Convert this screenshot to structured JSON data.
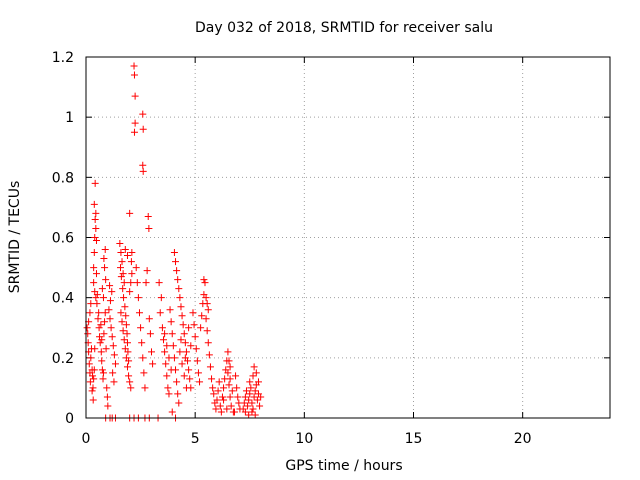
{
  "chart_data": {
    "type": "scatter",
    "title": "Day 032 of 2018, SRMTID for receiver salu",
    "xlabel": "GPS time / hours",
    "ylabel": "SRMTID / TECUs",
    "xlim": [
      0,
      24
    ],
    "ylim": [
      0,
      1.2
    ],
    "xticks": [
      0,
      5,
      10,
      15,
      20
    ],
    "xtick_labels": [
      "0",
      "5",
      "10",
      "15",
      "20"
    ],
    "yticks": [
      0,
      0.2,
      0.4,
      0.6,
      0.8,
      1.0,
      1.2
    ],
    "ytick_labels": [
      "0",
      "0.2",
      "0.4",
      "0.6",
      "0.8",
      "1",
      "1.2"
    ],
    "grid": true,
    "marker": "+",
    "color": "#ff0000",
    "series": [
      {
        "name": "SRMTID",
        "points": [
          [
            0.05,
            0.3
          ],
          [
            0.08,
            0.28
          ],
          [
            0.1,
            0.25
          ],
          [
            0.12,
            0.22
          ],
          [
            0.15,
            0.18
          ],
          [
            0.18,
            0.15
          ],
          [
            0.2,
            0.12
          ],
          [
            0.22,
            0.2
          ],
          [
            0.25,
            0.23
          ],
          [
            0.28,
            0.16
          ],
          [
            0.3,
            0.14
          ],
          [
            0.32,
            0.1
          ],
          [
            0.35,
            0.13
          ],
          [
            0.38,
            0.16
          ],
          [
            0.4,
            0.23
          ],
          [
            0.12,
            0.32
          ],
          [
            0.18,
            0.35
          ],
          [
            0.22,
            0.38
          ],
          [
            0.28,
            0.09
          ],
          [
            0.33,
            0.06
          ],
          [
            0.35,
            0.5
          ],
          [
            0.38,
            0.55
          ],
          [
            0.4,
            0.6
          ],
          [
            0.42,
            0.66
          ],
          [
            0.45,
            0.68
          ],
          [
            0.38,
            0.71
          ],
          [
            0.42,
            0.78
          ],
          [
            0.45,
            0.63
          ],
          [
            0.48,
            0.59
          ],
          [
            0.35,
            0.45
          ],
          [
            0.4,
            0.42
          ],
          [
            0.45,
            0.4
          ],
          [
            0.5,
            0.38
          ],
          [
            0.55,
            0.33
          ],
          [
            0.6,
            0.3
          ],
          [
            0.62,
            0.27
          ],
          [
            0.65,
            0.25
          ],
          [
            0.58,
            0.35
          ],
          [
            0.52,
            0.41
          ],
          [
            0.48,
            0.48
          ],
          [
            0.7,
            0.22
          ],
          [
            0.72,
            0.19
          ],
          [
            0.75,
            0.16
          ],
          [
            0.78,
            0.13
          ],
          [
            0.8,
            0.15
          ],
          [
            0.82,
            0.28
          ],
          [
            0.85,
            0.32
          ],
          [
            0.88,
            0.35
          ],
          [
            0.8,
            0.4
          ],
          [
            0.75,
            0.43
          ],
          [
            0.9,
            0.46
          ],
          [
            0.85,
            0.5
          ],
          [
            0.82,
            0.53
          ],
          [
            0.88,
            0.56
          ],
          [
            0.72,
            0.26
          ],
          [
            0.68,
            0.31
          ],
          [
            0.92,
            0.23
          ],
          [
            0.95,
            0.1
          ],
          [
            0.98,
            0.07
          ],
          [
            1.0,
            0.04
          ],
          [
            1.05,
            0.36
          ],
          [
            1.1,
            0.33
          ],
          [
            1.15,
            0.3
          ],
          [
            1.2,
            0.27
          ],
          [
            1.25,
            0.24
          ],
          [
            1.3,
            0.21
          ],
          [
            1.35,
            0.18
          ],
          [
            1.12,
            0.39
          ],
          [
            1.18,
            0.42
          ],
          [
            1.08,
            0.44
          ],
          [
            1.22,
            0.15
          ],
          [
            1.28,
            0.12
          ],
          [
            0.9,
            0.0
          ],
          [
            1.1,
            0.0
          ],
          [
            1.2,
            0.0
          ],
          [
            1.35,
            0.0
          ],
          [
            1.55,
            0.58
          ],
          [
            1.6,
            0.55
          ],
          [
            1.65,
            0.52
          ],
          [
            1.7,
            0.48
          ],
          [
            1.75,
            0.45
          ],
          [
            1.58,
            0.5
          ],
          [
            1.62,
            0.47
          ],
          [
            1.68,
            0.43
          ],
          [
            1.72,
            0.4
          ],
          [
            1.78,
            0.37
          ],
          [
            1.82,
            0.34
          ],
          [
            1.85,
            0.31
          ],
          [
            1.88,
            0.28
          ],
          [
            1.9,
            0.25
          ],
          [
            1.92,
            0.22
          ],
          [
            1.95,
            0.19
          ],
          [
            1.6,
            0.35
          ],
          [
            1.65,
            0.32
          ],
          [
            1.7,
            0.29
          ],
          [
            1.75,
            0.26
          ],
          [
            1.8,
            0.23
          ],
          [
            1.85,
            0.2
          ],
          [
            1.9,
            0.17
          ],
          [
            1.95,
            0.14
          ],
          [
            2.0,
            0.12
          ],
          [
            2.05,
            0.1
          ],
          [
            2.0,
            0.42
          ],
          [
            2.05,
            0.45
          ],
          [
            2.1,
            0.48
          ],
          [
            2.08,
            0.52
          ],
          [
            2.1,
            0.55
          ],
          [
            2.0,
            0.68
          ],
          [
            1.8,
            0.56
          ],
          [
            1.9,
            0.54
          ],
          [
            2.2,
            1.17
          ],
          [
            2.22,
            1.14
          ],
          [
            2.25,
            1.07
          ],
          [
            2.25,
            0.98
          ],
          [
            2.22,
            0.95
          ],
          [
            2.3,
            0.5
          ],
          [
            2.35,
            0.45
          ],
          [
            2.4,
            0.4
          ],
          [
            2.45,
            0.35
          ],
          [
            2.5,
            0.3
          ],
          [
            2.55,
            0.25
          ],
          [
            2.6,
            0.2
          ],
          [
            2.65,
            0.15
          ],
          [
            2.7,
            0.1
          ],
          [
            2.6,
            1.01
          ],
          [
            2.62,
            0.96
          ],
          [
            2.6,
            0.84
          ],
          [
            2.62,
            0.82
          ],
          [
            2.75,
            0.45
          ],
          [
            2.8,
            0.49
          ],
          [
            2.85,
            0.67
          ],
          [
            2.88,
            0.63
          ],
          [
            2.9,
            0.33
          ],
          [
            2.95,
            0.28
          ],
          [
            3.0,
            0.22
          ],
          [
            3.05,
            0.18
          ],
          [
            2.2,
            0.0
          ],
          [
            2.4,
            0.0
          ],
          [
            2.7,
            0.0
          ],
          [
            2.9,
            0.0
          ],
          [
            3.3,
            0.0
          ],
          [
            2.0,
            0.0
          ],
          [
            3.5,
            0.3
          ],
          [
            3.55,
            0.26
          ],
          [
            3.6,
            0.22
          ],
          [
            3.65,
            0.18
          ],
          [
            3.7,
            0.14
          ],
          [
            3.75,
            0.1
          ],
          [
            3.8,
            0.08
          ],
          [
            3.4,
            0.35
          ],
          [
            3.45,
            0.4
          ],
          [
            3.35,
            0.45
          ],
          [
            3.6,
            0.28
          ],
          [
            3.7,
            0.24
          ],
          [
            3.8,
            0.2
          ],
          [
            3.9,
            0.16
          ],
          [
            3.85,
            0.36
          ],
          [
            3.9,
            0.32
          ],
          [
            3.95,
            0.28
          ],
          [
            4.0,
            0.24
          ],
          [
            4.05,
            0.2
          ],
          [
            4.1,
            0.16
          ],
          [
            4.15,
            0.12
          ],
          [
            4.2,
            0.08
          ],
          [
            4.25,
            0.05
          ],
          [
            3.95,
            0.02
          ],
          [
            4.1,
            0.0
          ],
          [
            4.05,
            0.55
          ],
          [
            4.1,
            0.52
          ],
          [
            4.15,
            0.49
          ],
          [
            4.2,
            0.46
          ],
          [
            4.25,
            0.43
          ],
          [
            4.3,
            0.4
          ],
          [
            4.35,
            0.37
          ],
          [
            4.4,
            0.34
          ],
          [
            4.45,
            0.31
          ],
          [
            4.5,
            0.28
          ],
          [
            4.55,
            0.25
          ],
          [
            4.6,
            0.22
          ],
          [
            4.65,
            0.19
          ],
          [
            4.7,
            0.16
          ],
          [
            4.75,
            0.13
          ],
          [
            4.8,
            0.1
          ],
          [
            4.3,
            0.22
          ],
          [
            4.4,
            0.18
          ],
          [
            4.5,
            0.14
          ],
          [
            4.6,
            0.1
          ],
          [
            4.35,
            0.26
          ],
          [
            4.55,
            0.2
          ],
          [
            4.7,
            0.3
          ],
          [
            4.8,
            0.24
          ],
          [
            4.9,
            0.35
          ],
          [
            4.95,
            0.31
          ],
          [
            5.0,
            0.27
          ],
          [
            5.05,
            0.23
          ],
          [
            5.1,
            0.19
          ],
          [
            5.15,
            0.15
          ],
          [
            5.2,
            0.12
          ],
          [
            5.25,
            0.3
          ],
          [
            5.3,
            0.34
          ],
          [
            5.35,
            0.38
          ],
          [
            5.4,
            0.41
          ],
          [
            5.45,
            0.45
          ],
          [
            5.4,
            0.46
          ],
          [
            5.5,
            0.33
          ],
          [
            5.55,
            0.29
          ],
          [
            5.6,
            0.25
          ],
          [
            5.65,
            0.21
          ],
          [
            5.7,
            0.17
          ],
          [
            5.75,
            0.13
          ],
          [
            5.8,
            0.1
          ],
          [
            5.5,
            0.4
          ],
          [
            5.55,
            0.38
          ],
          [
            5.6,
            0.36
          ],
          [
            5.85,
            0.08
          ],
          [
            5.9,
            0.05
          ],
          [
            5.95,
            0.03
          ],
          [
            6.0,
            0.06
          ],
          [
            6.05,
            0.09
          ],
          [
            6.1,
            0.12
          ],
          [
            6.15,
            0.04
          ],
          [
            6.2,
            0.02
          ],
          [
            6.25,
            0.07
          ],
          [
            6.3,
            0.1
          ],
          [
            6.35,
            0.13
          ],
          [
            6.4,
            0.16
          ],
          [
            6.45,
            0.19
          ],
          [
            6.5,
            0.15
          ],
          [
            6.55,
            0.11
          ],
          [
            6.6,
            0.07
          ],
          [
            6.65,
            0.04
          ],
          [
            6.7,
            0.09
          ],
          [
            6.3,
            0.06
          ],
          [
            6.45,
            0.03
          ],
          [
            6.6,
            0.13
          ],
          [
            6.75,
            0.02
          ],
          [
            6.5,
            0.22
          ],
          [
            6.55,
            0.19
          ],
          [
            6.6,
            0.17
          ],
          [
            6.85,
            0.14
          ],
          [
            6.9,
            0.1
          ],
          [
            6.95,
            0.07
          ],
          [
            7.0,
            0.05
          ],
          [
            6.8,
            0.02
          ],
          [
            7.05,
            0.03
          ],
          [
            7.2,
            0.03
          ],
          [
            7.25,
            0.05
          ],
          [
            7.3,
            0.07
          ],
          [
            7.35,
            0.09
          ],
          [
            7.4,
            0.04
          ],
          [
            7.45,
            0.06
          ],
          [
            7.5,
            0.08
          ],
          [
            7.55,
            0.1
          ],
          [
            7.6,
            0.05
          ],
          [
            7.65,
            0.03
          ],
          [
            7.7,
            0.07
          ],
          [
            7.75,
            0.09
          ],
          [
            7.8,
            0.11
          ],
          [
            7.85,
            0.06
          ],
          [
            7.9,
            0.08
          ],
          [
            7.95,
            0.04
          ],
          [
            8.0,
            0.07
          ],
          [
            7.3,
            0.02
          ],
          [
            7.45,
            0.01
          ],
          [
            7.6,
            0.02
          ],
          [
            7.75,
            0.01
          ],
          [
            7.5,
            0.12
          ],
          [
            7.65,
            0.14
          ],
          [
            7.7,
            0.17
          ],
          [
            7.8,
            0.15
          ],
          [
            7.9,
            0.12
          ]
        ]
      }
    ]
  }
}
